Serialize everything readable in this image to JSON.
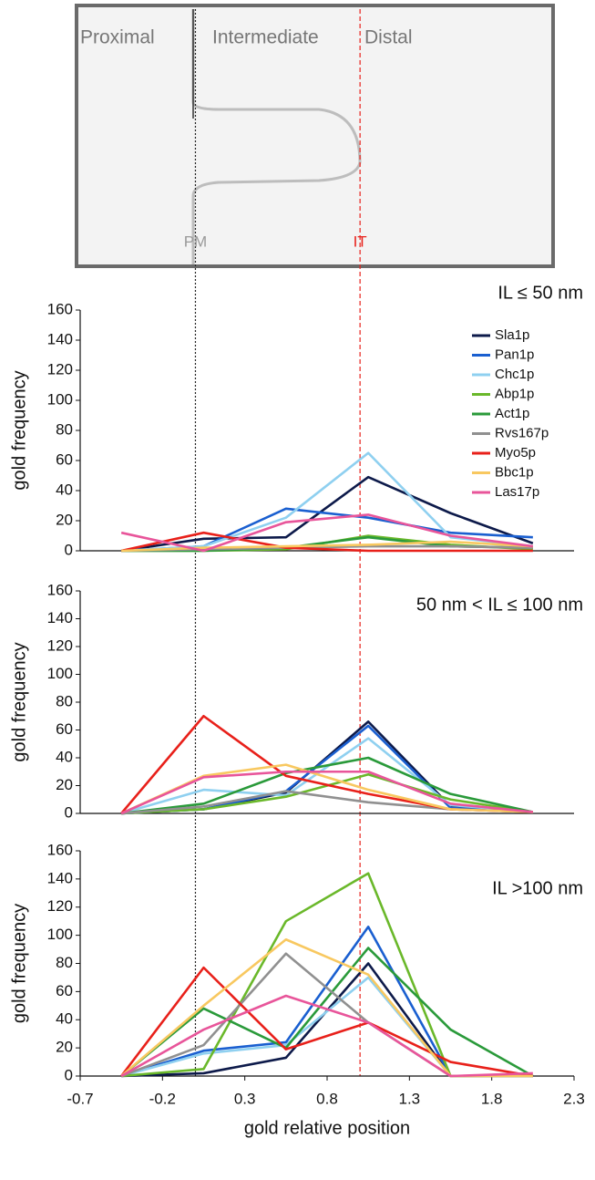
{
  "diagram": {
    "regions": [
      "Proximal",
      "Intermediate",
      "Distal"
    ],
    "reference_lines": [
      {
        "x": 0,
        "label": "PM",
        "color": "#999999",
        "line_color": "#222222"
      },
      {
        "x": 1,
        "label": "IT",
        "color": "#e8201a",
        "line_color": "#e8201a"
      }
    ]
  },
  "chart_data": [
    {
      "type": "line",
      "title": "IL ≤ 50 nm",
      "ylabel": "gold frequency",
      "x": [
        -0.45,
        0.05,
        0.55,
        1.05,
        1.55,
        2.05
      ],
      "xlim": [
        -0.7,
        2.3
      ],
      "ylim": [
        0,
        160
      ],
      "yticks": [
        0,
        20,
        40,
        60,
        80,
        100,
        120,
        140,
        160
      ],
      "legend": "upper right",
      "series": [
        {
          "name": "Sla1p",
          "color": "#0d1a4a",
          "values": [
            0,
            8,
            9,
            49,
            25,
            5
          ]
        },
        {
          "name": "Pan1p",
          "color": "#1a5fd0",
          "values": [
            0,
            3,
            28,
            22,
            12,
            9
          ]
        },
        {
          "name": "Chc1p",
          "color": "#8fd0f0",
          "values": [
            0,
            3,
            22,
            65,
            9,
            3
          ]
        },
        {
          "name": "Abp1p",
          "color": "#6ab82a",
          "values": [
            0,
            0,
            1,
            10,
            4,
            1
          ]
        },
        {
          "name": "Act1p",
          "color": "#2a9a3a",
          "values": [
            0,
            0,
            2,
            9,
            3,
            2
          ]
        },
        {
          "name": "Rvs167p",
          "color": "#909090",
          "values": [
            0,
            1,
            2,
            3,
            3,
            2
          ]
        },
        {
          "name": "Myo5p",
          "color": "#e8201a",
          "values": [
            0,
            12,
            2,
            0,
            0,
            0
          ]
        },
        {
          "name": "Bbc1p",
          "color": "#f8c860",
          "values": [
            0,
            2,
            3,
            4,
            6,
            3
          ]
        },
        {
          "name": "Las17p",
          "color": "#e8559a",
          "values": [
            12,
            0,
            19,
            24,
            10,
            3
          ]
        }
      ]
    },
    {
      "type": "line",
      "title": "50 nm < IL ≤ 100 nm",
      "ylabel": "gold frequency",
      "x": [
        -0.45,
        0.05,
        0.55,
        1.05,
        1.55,
        2.05
      ],
      "xlim": [
        -0.7,
        2.3
      ],
      "ylim": [
        0,
        160
      ],
      "yticks": [
        0,
        20,
        40,
        60,
        80,
        100,
        120,
        140,
        160
      ],
      "series": [
        {
          "color": "#0d1a4a",
          "values": [
            0,
            3,
            15,
            66,
            5,
            1
          ]
        },
        {
          "color": "#1a5fd0",
          "values": [
            0,
            3,
            16,
            63,
            4,
            1
          ]
        },
        {
          "color": "#8fd0f0",
          "values": [
            0,
            17,
            13,
            54,
            6,
            1
          ]
        },
        {
          "color": "#6ab82a",
          "values": [
            0,
            3,
            12,
            28,
            10,
            1
          ]
        },
        {
          "color": "#2a9a3a",
          "values": [
            0,
            7,
            29,
            40,
            14,
            1
          ]
        },
        {
          "color": "#909090",
          "values": [
            0,
            5,
            16,
            8,
            3,
            1
          ]
        },
        {
          "color": "#e8201a",
          "values": [
            0,
            70,
            27,
            14,
            3,
            1
          ]
        },
        {
          "color": "#f8c860",
          "values": [
            0,
            27,
            35,
            17,
            3,
            1
          ]
        },
        {
          "color": "#e8559a",
          "values": [
            0,
            26,
            30,
            30,
            7,
            1
          ]
        }
      ]
    },
    {
      "type": "line",
      "title": "IL >100 nm",
      "ylabel": "gold frequency",
      "xlabel": "gold relative position",
      "x": [
        -0.45,
        0.05,
        0.55,
        1.05,
        1.55,
        2.05
      ],
      "xlim": [
        -0.7,
        2.3
      ],
      "xticks": [
        -0.7,
        -0.2,
        0.3,
        0.8,
        1.3,
        1.8,
        2.3
      ],
      "ylim": [
        0,
        160
      ],
      "yticks": [
        0,
        20,
        40,
        60,
        80,
        100,
        120,
        140,
        160
      ],
      "series": [
        {
          "color": "#0d1a4a",
          "values": [
            0,
            2,
            13,
            80,
            0,
            0
          ]
        },
        {
          "color": "#1a5fd0",
          "values": [
            0,
            18,
            24,
            106,
            0,
            0
          ]
        },
        {
          "color": "#8fd0f0",
          "values": [
            0,
            16,
            22,
            70,
            0,
            0
          ]
        },
        {
          "color": "#6ab82a",
          "values": [
            0,
            5,
            110,
            144,
            0,
            0
          ]
        },
        {
          "color": "#2a9a3a",
          "values": [
            0,
            48,
            20,
            91,
            33,
            0
          ]
        },
        {
          "color": "#909090",
          "values": [
            0,
            22,
            87,
            38,
            0,
            0
          ]
        },
        {
          "color": "#e8201a",
          "values": [
            0,
            77,
            19,
            38,
            10,
            0
          ]
        },
        {
          "color": "#f8c860",
          "values": [
            0,
            50,
            97,
            72,
            0,
            0
          ]
        },
        {
          "color": "#e8559a",
          "values": [
            0,
            33,
            57,
            38,
            0,
            2
          ]
        }
      ]
    }
  ]
}
